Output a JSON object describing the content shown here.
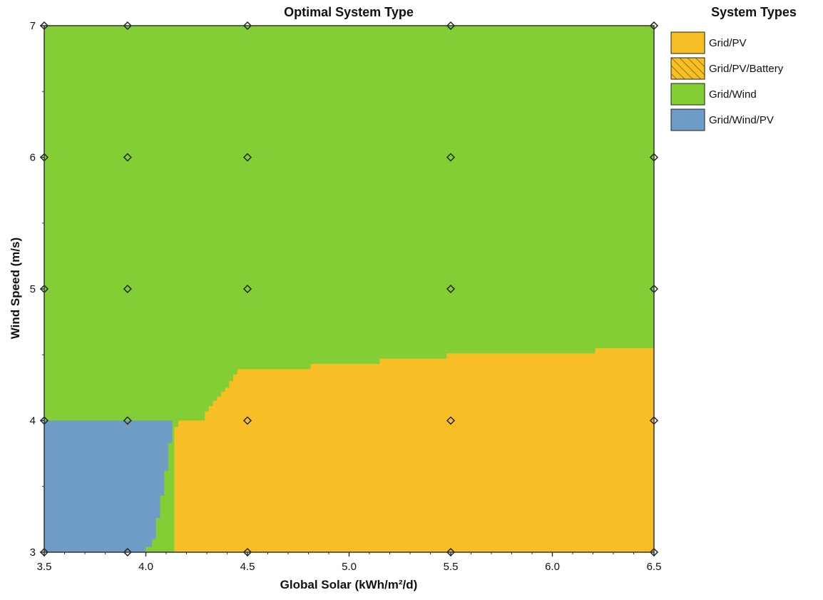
{
  "colors": {
    "grid_pv": "#F7BE26",
    "grid_wind": "#82CE34",
    "grid_wind_pv": "#6F9CC6",
    "marker": "#222222"
  },
  "chart_data": {
    "type": "heatmap",
    "title": "Optimal System Type",
    "xlabel": "Global Solar (kWh/m²/d)",
    "ylabel": "Wind Speed (m/s)",
    "xlim": [
      3.5,
      6.5
    ],
    "ylim": [
      3,
      7
    ],
    "x_ticks": [
      3.5,
      4.0,
      4.5,
      5.0,
      5.5,
      6.0,
      6.5
    ],
    "x_tick_labels": [
      "3.5",
      "4.0",
      "4.5",
      "5.0",
      "5.5",
      "6.0",
      "6.5"
    ],
    "y_ticks": [
      3,
      4,
      5,
      6,
      7
    ],
    "y_tick_labels": [
      "3",
      "4",
      "5",
      "6",
      "7"
    ],
    "legend": {
      "title": "System Types",
      "placement": "right",
      "items": [
        {
          "label": "Grid/PV",
          "color": "#F7BE26",
          "hatched": false
        },
        {
          "label": "Grid/PV/Battery",
          "color": "#F7BE26",
          "hatched": true
        },
        {
          "label": "Grid/Wind",
          "color": "#82CE34",
          "hatched": false
        },
        {
          "label": "Grid/Wind/PV",
          "color": "#6F9CC6",
          "hatched": false
        }
      ]
    },
    "regions": {
      "background": "Grid/Wind",
      "grid_pv_upper_boundary": [
        [
          4.14,
          3.0
        ],
        [
          4.14,
          3.95
        ],
        [
          4.16,
          3.95
        ],
        [
          4.16,
          4.0
        ],
        [
          4.29,
          4.0
        ],
        [
          4.29,
          4.07
        ],
        [
          4.31,
          4.07
        ],
        [
          4.31,
          4.11
        ],
        [
          4.33,
          4.11
        ],
        [
          4.33,
          4.15
        ],
        [
          4.35,
          4.15
        ],
        [
          4.35,
          4.18
        ],
        [
          4.37,
          4.18
        ],
        [
          4.37,
          4.22
        ],
        [
          4.39,
          4.22
        ],
        [
          4.39,
          4.25
        ],
        [
          4.41,
          4.25
        ],
        [
          4.41,
          4.3
        ],
        [
          4.43,
          4.3
        ],
        [
          4.43,
          4.35
        ],
        [
          4.45,
          4.35
        ],
        [
          4.45,
          4.39
        ],
        [
          4.81,
          4.39
        ],
        [
          4.81,
          4.43
        ],
        [
          5.15,
          4.43
        ],
        [
          5.15,
          4.47
        ],
        [
          5.48,
          4.47
        ],
        [
          5.48,
          4.51
        ],
        [
          6.21,
          4.51
        ],
        [
          6.21,
          4.55
        ],
        [
          6.5,
          4.55
        ]
      ],
      "grid_wind_pv_boundary": [
        [
          3.5,
          3.0
        ],
        [
          3.5,
          4.0
        ],
        [
          4.13,
          4.0
        ],
        [
          4.13,
          3.83
        ],
        [
          4.11,
          3.83
        ],
        [
          4.11,
          3.62
        ],
        [
          4.09,
          3.62
        ],
        [
          4.09,
          3.43
        ],
        [
          4.07,
          3.43
        ],
        [
          4.07,
          3.26
        ],
        [
          4.05,
          3.26
        ],
        [
          4.05,
          3.1
        ],
        [
          4.03,
          3.1
        ],
        [
          4.03,
          3.04
        ],
        [
          4.0,
          3.04
        ],
        [
          4.0,
          3.0
        ]
      ]
    },
    "markers": [
      [
        3.5,
        3
      ],
      [
        3.91,
        3
      ],
      [
        4.5,
        3
      ],
      [
        5.5,
        3
      ],
      [
        6.5,
        3
      ],
      [
        3.5,
        4
      ],
      [
        3.91,
        4
      ],
      [
        4.5,
        4
      ],
      [
        5.5,
        4
      ],
      [
        6.5,
        4
      ],
      [
        3.5,
        5
      ],
      [
        3.91,
        5
      ],
      [
        4.5,
        5
      ],
      [
        5.5,
        5
      ],
      [
        6.5,
        5
      ],
      [
        3.5,
        6
      ],
      [
        3.91,
        6
      ],
      [
        4.5,
        6
      ],
      [
        5.5,
        6
      ],
      [
        6.5,
        6
      ],
      [
        3.5,
        7
      ],
      [
        3.91,
        7
      ],
      [
        4.5,
        7
      ],
      [
        5.5,
        7
      ],
      [
        6.5,
        7
      ]
    ]
  }
}
